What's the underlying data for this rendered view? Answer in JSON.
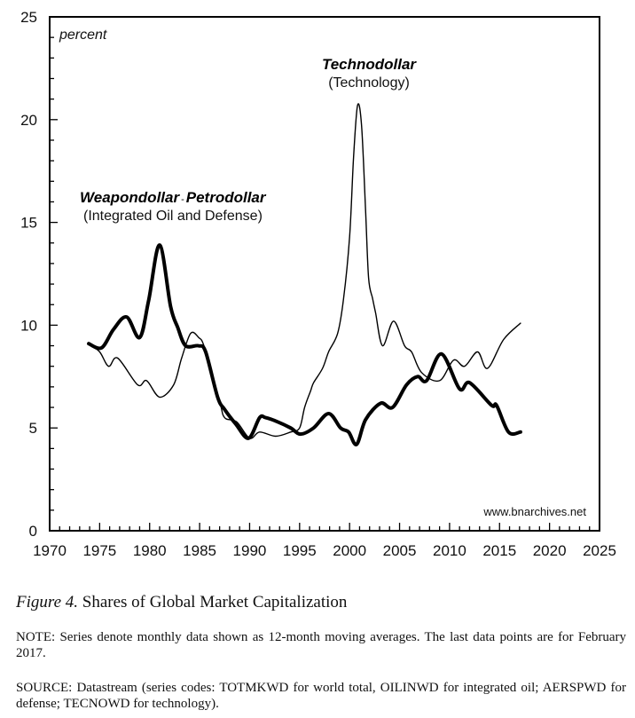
{
  "chart_data": {
    "type": "line",
    "title": "",
    "ylabel": "percent",
    "xlabel": "",
    "xlim": [
      1970,
      2025
    ],
    "ylim": [
      0,
      25
    ],
    "grid": false,
    "x_ticks": [
      1970,
      1975,
      1980,
      1985,
      1990,
      1995,
      2000,
      2005,
      2010,
      2015,
      2020,
      2025
    ],
    "y_ticks": [
      0,
      5,
      10,
      15,
      20,
      25
    ],
    "watermark": "www.bnarchives.net",
    "annotations": [
      {
        "title": "Weapondollar-Petrodollar",
        "title_parts": [
          "Weapondollar",
          "-",
          "Petrodollar"
        ],
        "subtitle": "(Integrated Oil and Defense)",
        "series": "weapondollar-petrodollar"
      },
      {
        "title": "Technodollar",
        "subtitle": "(Technology)",
        "series": "technodollar"
      }
    ],
    "series": [
      {
        "name": "Weapondollar-Petrodollar (Integrated Oil and Defense)",
        "style": "thick",
        "x": [
          1973.9,
          1975.2,
          1976.4,
          1977.7,
          1979.0,
          1979.9,
          1981.0,
          1982.1,
          1982.8,
          1983.6,
          1984.9,
          1985.6,
          1986.8,
          1987.5,
          1988.6,
          1989.9,
          1991.0,
          1991.6,
          1992.8,
          1994.1,
          1995.1,
          1996.4,
          1997.9,
          1999.1,
          1999.9,
          2000.7,
          2001.6,
          2003.1,
          2004.3,
          2005.7,
          2006.8,
          2007.7,
          2009.2,
          2011.0,
          2012.0,
          2014.2,
          2014.7,
          2015.9,
          2017.1
        ],
        "values": [
          9.1,
          8.9,
          9.8,
          10.4,
          9.4,
          11.2,
          13.9,
          10.9,
          9.9,
          9.0,
          9.0,
          8.7,
          6.5,
          5.9,
          5.2,
          4.5,
          5.5,
          5.5,
          5.3,
          5.0,
          4.7,
          5.0,
          5.7,
          5.0,
          4.8,
          4.2,
          5.4,
          6.2,
          6.0,
          7.1,
          7.5,
          7.3,
          8.6,
          6.9,
          7.2,
          6.1,
          6.1,
          4.8,
          4.8
        ]
      },
      {
        "name": "Technodollar (Technology)",
        "style": "thin",
        "x": [
          1973.9,
          1975.0,
          1975.9,
          1976.8,
          1978.8,
          1979.7,
          1981.0,
          1982.4,
          1983.2,
          1984.1,
          1984.9,
          1985.5,
          1987.0,
          1987.5,
          1988.7,
          1990.0,
          1991.0,
          1992.6,
          1994.1,
          1995.0,
          1995.5,
          1996.1,
          1996.4,
          1997.3,
          1997.9,
          1998.8,
          1999.4,
          2000.0,
          2000.4,
          2000.8,
          2001.2,
          2001.6,
          2001.9,
          2002.3,
          2002.6,
          2003.3,
          2004.4,
          2005.5,
          2006.2,
          2007.2,
          2009.0,
          2010.4,
          2011.5,
          2012.8,
          2013.8,
          2015.4,
          2017.1
        ],
        "values": [
          9.1,
          8.7,
          8.0,
          8.4,
          7.1,
          7.3,
          6.5,
          7.1,
          8.4,
          9.6,
          9.4,
          8.9,
          6.3,
          5.5,
          5.3,
          4.5,
          4.8,
          4.6,
          4.8,
          5.0,
          6.0,
          6.8,
          7.2,
          7.9,
          8.7,
          9.6,
          11.3,
          14.3,
          18.2,
          20.7,
          19.7,
          15.6,
          12.3,
          11.3,
          10.6,
          9.0,
          10.2,
          9.0,
          8.7,
          7.7,
          7.3,
          8.3,
          8.0,
          8.7,
          7.9,
          9.3,
          10.1
        ]
      }
    ]
  },
  "caption": {
    "figure_label": "Figure 4.",
    "figure_title": "Shares of Global Market Capitalization",
    "note": "NOTE: Series denote monthly data shown as 12-month moving averages. The last data points are for February 2017.",
    "source": "SOURCE: Datastream (series codes: TOTMKWD for world total, OILINWD for integrated oil; AERSPWD for defense; TECNOWD for technology)."
  }
}
